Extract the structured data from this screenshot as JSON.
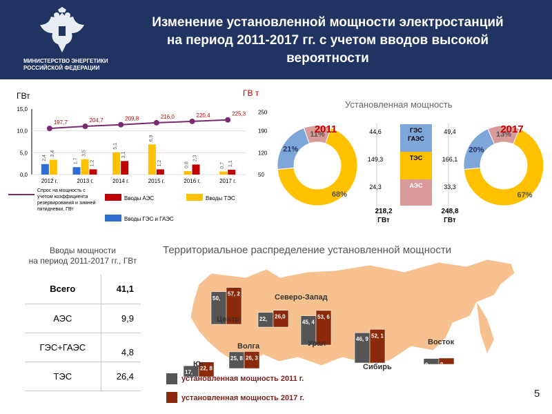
{
  "header": {
    "title_lines": [
      "Изменение установленной мощности электростанций",
      "на период 2011-2017 гг. с учетом вводов высокой",
      "вероятности"
    ],
    "ministry_lines": [
      "МИНИСТЕРСТВО ЭНЕРГЕТИКИ",
      "РОССИЙСКОЙ ФЕДЕРАЦИИ"
    ]
  },
  "colors": {
    "header_bg": "#1f3461",
    "aes": "#c00000",
    "tes": "#ffc000",
    "ges": "#2f6fd0",
    "line": "#7a2a6e",
    "pie_tes": "#ffc000",
    "pie_ges": "#7fa6d9",
    "pie_aes": "#d99a9a",
    "map_land": "#f6c18e",
    "map_2011": "#555555",
    "map_2017": "#8b2a0a"
  },
  "combo_chart": {
    "left_unit": "ГВт",
    "right_unit": "ГВ т",
    "left_ticks": [
      "15,0",
      "10,0",
      "5,0",
      "0,0"
    ],
    "right_ticks": [
      "250",
      "190",
      "120",
      "50"
    ],
    "legend": {
      "line": "Спрос на мощность с учетом коэффициента резервирования и зимней пятидневки, ГВт",
      "aes": "Вводы АЭС",
      "tes": "Вводы ТЭС",
      "ges": "Вводы ГЭС и ГАЭС"
    }
  },
  "chart_data": [
    {
      "type": "bar",
      "title": "",
      "categories": [
        "2012 г.",
        "2013 г.",
        "2014 г.",
        "2015 г.",
        "2016 г.",
        "2017 г."
      ],
      "series": [
        {
          "name": "Вводы ГЭС и ГАЭС",
          "values": [
            2.4,
            1.7,
            0,
            0,
            0,
            0
          ]
        },
        {
          "name": "Вводы ТЭС",
          "values": [
            3.4,
            3.5,
            5.1,
            6.9,
            0.8,
            0.7
          ]
        },
        {
          "name": "Вводы АЭС",
          "values": [
            0,
            1.2,
            3.1,
            1.2,
            2.3,
            1.1
          ]
        },
        {
          "name": "Спрос на мощность с учетом коэффициента резервирования и зимней пятидневки, ГВт",
          "axis": "right",
          "values": [
            197.7,
            204.7,
            209.8,
            216.0,
            220.4,
            225.3
          ]
        }
      ],
      "series_labels": {
        "ges": [
          "2,4",
          "1,7",
          "",
          "",
          "",
          ""
        ],
        "tes": [
          "3,4",
          "3,5",
          "5,1",
          "6,9",
          "0,8",
          "0,7"
        ],
        "aes": [
          "",
          "1,2",
          "3,1",
          "1,2",
          "2,3",
          "1,1"
        ],
        "line": [
          "197,7",
          "204,7",
          "209,8",
          "216,0",
          "220,4",
          "225,3"
        ]
      },
      "ylim": [
        0,
        15
      ],
      "y2lim": [
        50,
        260
      ]
    },
    {
      "type": "pie",
      "title": "2011",
      "categories": [
        "ТЭС",
        "ГЭС ГАЭС",
        "АЭС"
      ],
      "values": [
        68,
        21,
        11
      ],
      "labels": [
        "68%",
        "21%",
        "11%"
      ]
    },
    {
      "type": "pie",
      "title": "2017",
      "categories": [
        "ТЭС",
        "ГЭС ГАЭС",
        "АЭС"
      ],
      "values": [
        67,
        20,
        13
      ],
      "labels": [
        "67%",
        "20%",
        "13%"
      ]
    },
    {
      "type": "table",
      "title": "Установленная мощность",
      "rows": [
        {
          "label": "ГЭС ГАЭС",
          "v2011": "44,6",
          "v2017": "49,4"
        },
        {
          "label": "ТЭС",
          "v2011": "149,3",
          "v2017": "166,1"
        },
        {
          "label": "АЭС",
          "v2011": "24,3",
          "v2017": "33,3"
        }
      ],
      "totals": {
        "v2011": "218,2 ГВт",
        "v2017": "248,8 ГВт"
      }
    },
    {
      "type": "bar",
      "title": "Территориальное распределение установленной мощности",
      "categories": [
        "Центр",
        "Северо-Запад",
        "Юг",
        "Волга",
        "Урал",
        "Сибирь",
        "Восток"
      ],
      "series": [
        {
          "name": "установленная мощность 2011 г.",
          "values": [
            50.6,
            22.7,
            17.0,
            25.8,
            45.4,
            46.9,
            9.0
          ]
        },
        {
          "name": "установленная мощность 2017 г.",
          "values": [
            57.2,
            26.0,
            22.8,
            26.3,
            53.6,
            52.1,
            9.7
          ]
        }
      ],
      "labels_2011": [
        "50,",
        "22,",
        "17,",
        "25, 8",
        "45, 4",
        "46, 9",
        "9,"
      ],
      "labels_2017": [
        "57, 2",
        "26,0",
        "22, 8",
        "26, 3",
        "53, 6",
        "52, 1",
        "9,"
      ]
    }
  ],
  "inputs": {
    "title_lines": [
      "Вводы мощности",
      "на период 2011-2017 гг., ГВт"
    ],
    "rows": [
      {
        "label": "Всего",
        "value": "41,1"
      },
      {
        "label": "АЭС",
        "value": "9,9"
      },
      {
        "label": "ГЭС+ГАЭС",
        "value": "4,8"
      },
      {
        "label": "ТЭС",
        "value": "26,4"
      }
    ]
  },
  "page_number": "5"
}
